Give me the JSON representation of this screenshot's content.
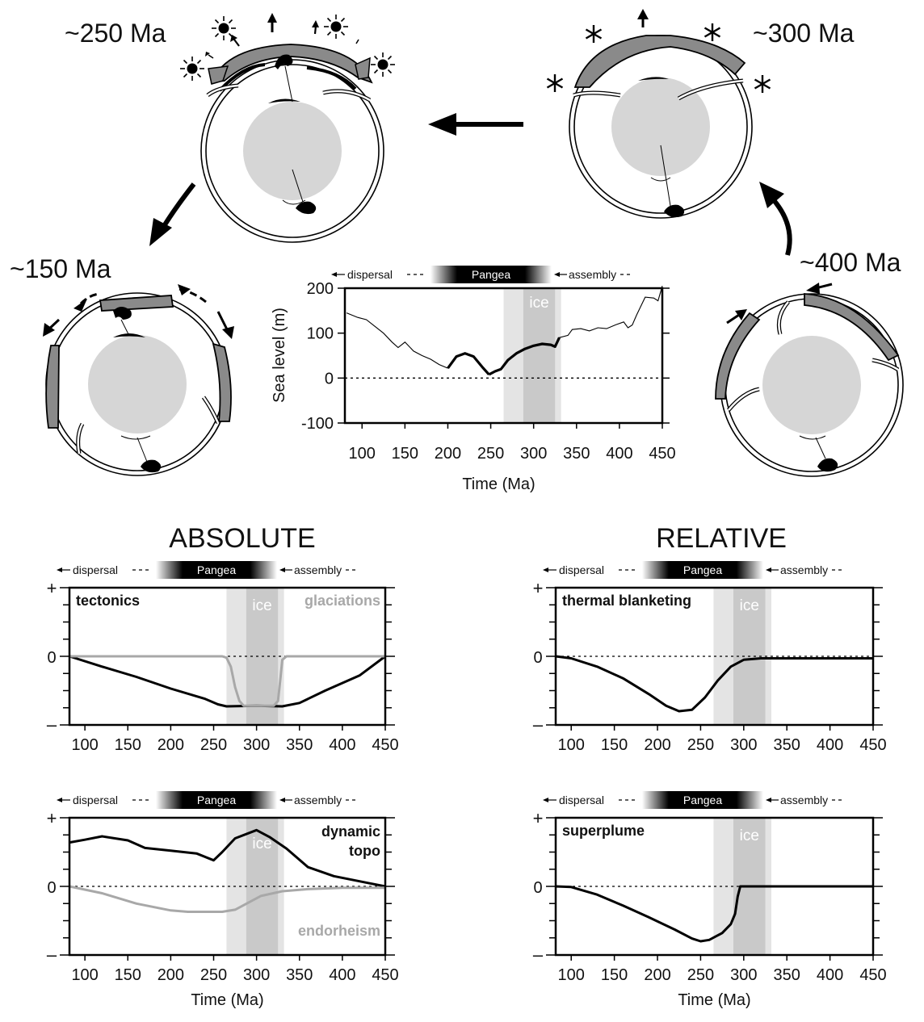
{
  "cycle": {
    "labels": {
      "s250": "~250 Ma",
      "s300": "~300 Ma",
      "s150": "~150 Ma",
      "s400": "~400 Ma"
    }
  },
  "headings": {
    "absolute": "ABSOLUTE",
    "relative": "RELATIVE"
  },
  "common": {
    "dispersal": "dispersal",
    "assembly": "assembly",
    "pangea": "Pangea",
    "ice": "ice",
    "time_label": "Time (Ma)",
    "x_ticks": [
      "100",
      "150",
      "200",
      "250",
      "300",
      "350",
      "400",
      "450"
    ],
    "plus": "+",
    "zero": "0",
    "minus": "–"
  },
  "colors": {
    "band_light": "#e4e4e4",
    "band_dark": "#c9c9c9",
    "grey_curve": "#a8a8a8",
    "continent": "#8a8a8a",
    "core": "#d6d6d6"
  },
  "chart_data": [
    {
      "id": "sealevel",
      "type": "line",
      "ylabel": "Sea level (m)",
      "xlabel": "Time (Ma)",
      "xlim": [
        80,
        450
      ],
      "ylim": [
        -100,
        200
      ],
      "y_ticks": [
        "200",
        "100",
        "0",
        "-100"
      ],
      "x_ticks": [
        "100",
        "150",
        "200",
        "250",
        "300",
        "350",
        "400",
        "450"
      ],
      "bands": [
        [
          265,
          332
        ],
        [
          288,
          325
        ]
      ],
      "series": [
        {
          "values": [
            [
              82,
              145
            ],
            [
              95,
              135
            ],
            [
              105,
              130
            ],
            [
              115,
              115
            ],
            [
              125,
              100
            ],
            [
              135,
              80
            ],
            [
              142,
              68
            ],
            [
              150,
              80
            ],
            [
              160,
              60
            ],
            [
              170,
              50
            ],
            [
              180,
              42
            ],
            [
              190,
              30
            ],
            [
              200,
              22
            ],
            [
              210,
              48
            ],
            [
              220,
              55
            ],
            [
              230,
              48
            ],
            [
              240,
              25
            ],
            [
              248,
              8
            ],
            [
              255,
              15
            ],
            [
              262,
              20
            ],
            [
              270,
              40
            ],
            [
              280,
              55
            ],
            [
              290,
              65
            ],
            [
              300,
              72
            ],
            [
              310,
              76
            ],
            [
              320,
              74
            ],
            [
              325,
              70
            ],
            [
              330,
              90
            ],
            [
              340,
              95
            ],
            [
              345,
              108
            ],
            [
              355,
              110
            ],
            [
              365,
              105
            ],
            [
              375,
              112
            ],
            [
              385,
              110
            ],
            [
              395,
              118
            ],
            [
              405,
              125
            ],
            [
              410,
              112
            ],
            [
              415,
              118
            ],
            [
              420,
              140
            ],
            [
              430,
              180
            ],
            [
              440,
              178
            ],
            [
              445,
              172
            ],
            [
              450,
              205
            ]
          ]
        }
      ]
    },
    {
      "id": "tectonics",
      "type": "line",
      "label": "tectonics",
      "label2": "glaciations",
      "xlim": [
        82,
        450
      ],
      "ylim": [
        -1,
        1
      ],
      "bands": [
        [
          265,
          332
        ],
        [
          288,
          325
        ]
      ],
      "series": [
        {
          "name": "tectonics",
          "values": [
            [
              82,
              0
            ],
            [
              120,
              -0.15
            ],
            [
              160,
              -0.3
            ],
            [
              200,
              -0.47
            ],
            [
              240,
              -0.62
            ],
            [
              255,
              -0.7
            ],
            [
              265,
              -0.73
            ],
            [
              300,
              -0.72
            ],
            [
              330,
              -0.73
            ],
            [
              350,
              -0.68
            ],
            [
              380,
              -0.5
            ],
            [
              420,
              -0.28
            ],
            [
              450,
              0
            ]
          ]
        },
        {
          "name": "glaciations",
          "values": [
            [
              82,
              0
            ],
            [
              255,
              0
            ],
            [
              260,
              0
            ],
            [
              265,
              -0.02
            ],
            [
              270,
              -0.15
            ],
            [
              275,
              -0.45
            ],
            [
              280,
              -0.65
            ],
            [
              285,
              -0.72
            ],
            [
              320,
              -0.72
            ],
            [
              325,
              -0.65
            ],
            [
              328,
              -0.3
            ],
            [
              330,
              -0.05
            ],
            [
              335,
              0
            ],
            [
              450,
              0
            ]
          ]
        }
      ]
    },
    {
      "id": "dynamic_topo",
      "type": "line",
      "label": "dynamic",
      "label_line2": "topo",
      "label2": "endorheism",
      "xlim": [
        82,
        450
      ],
      "ylim": [
        -1,
        1
      ],
      "bands": [
        [
          265,
          332
        ],
        [
          288,
          325
        ]
      ],
      "series": [
        {
          "name": "dynamic topo",
          "values": [
            [
              82,
              0.64
            ],
            [
              100,
              0.68
            ],
            [
              120,
              0.73
            ],
            [
              150,
              0.67
            ],
            [
              170,
              0.56
            ],
            [
              200,
              0.52
            ],
            [
              230,
              0.48
            ],
            [
              250,
              0.38
            ],
            [
              260,
              0.5
            ],
            [
              275,
              0.7
            ],
            [
              300,
              0.82
            ],
            [
              315,
              0.72
            ],
            [
              335,
              0.55
            ],
            [
              360,
              0.28
            ],
            [
              390,
              0.15
            ],
            [
              430,
              0.05
            ],
            [
              450,
              0
            ]
          ]
        },
        {
          "name": "endorheism",
          "values": [
            [
              82,
              0
            ],
            [
              120,
              -0.1
            ],
            [
              160,
              -0.25
            ],
            [
              200,
              -0.35
            ],
            [
              220,
              -0.37
            ],
            [
              260,
              -0.37
            ],
            [
              275,
              -0.34
            ],
            [
              290,
              -0.24
            ],
            [
              305,
              -0.14
            ],
            [
              330,
              -0.07
            ],
            [
              360,
              -0.04
            ],
            [
              400,
              -0.02
            ],
            [
              450,
              -0.02
            ]
          ]
        }
      ]
    },
    {
      "id": "thermal_blanketing",
      "type": "line",
      "label": "thermal blanketing",
      "xlim": [
        82,
        450
      ],
      "ylim": [
        -1,
        1
      ],
      "bands": [
        [
          265,
          332
        ],
        [
          288,
          325
        ]
      ],
      "series": [
        {
          "name": "thermal blanketing",
          "values": [
            [
              82,
              0
            ],
            [
              100,
              -0.03
            ],
            [
              130,
              -0.15
            ],
            [
              160,
              -0.32
            ],
            [
              190,
              -0.55
            ],
            [
              210,
              -0.72
            ],
            [
              225,
              -0.8
            ],
            [
              240,
              -0.78
            ],
            [
              255,
              -0.6
            ],
            [
              270,
              -0.35
            ],
            [
              285,
              -0.15
            ],
            [
              300,
              -0.05
            ],
            [
              320,
              -0.03
            ],
            [
              450,
              -0.03
            ]
          ]
        }
      ]
    },
    {
      "id": "superplume",
      "type": "line",
      "label": "superplume",
      "xlim": [
        82,
        450
      ],
      "ylim": [
        -1,
        1
      ],
      "bands": [
        [
          265,
          332
        ],
        [
          288,
          325
        ]
      ],
      "series": [
        {
          "name": "superplume",
          "values": [
            [
              82,
              0
            ],
            [
              100,
              -0.01
            ],
            [
              130,
              -0.12
            ],
            [
              160,
              -0.28
            ],
            [
              190,
              -0.45
            ],
            [
              220,
              -0.63
            ],
            [
              240,
              -0.76
            ],
            [
              250,
              -0.8
            ],
            [
              260,
              -0.78
            ],
            [
              275,
              -0.68
            ],
            [
              285,
              -0.55
            ],
            [
              290,
              -0.4
            ],
            [
              293,
              -0.15
            ],
            [
              296,
              0
            ],
            [
              450,
              0
            ]
          ]
        }
      ]
    }
  ]
}
